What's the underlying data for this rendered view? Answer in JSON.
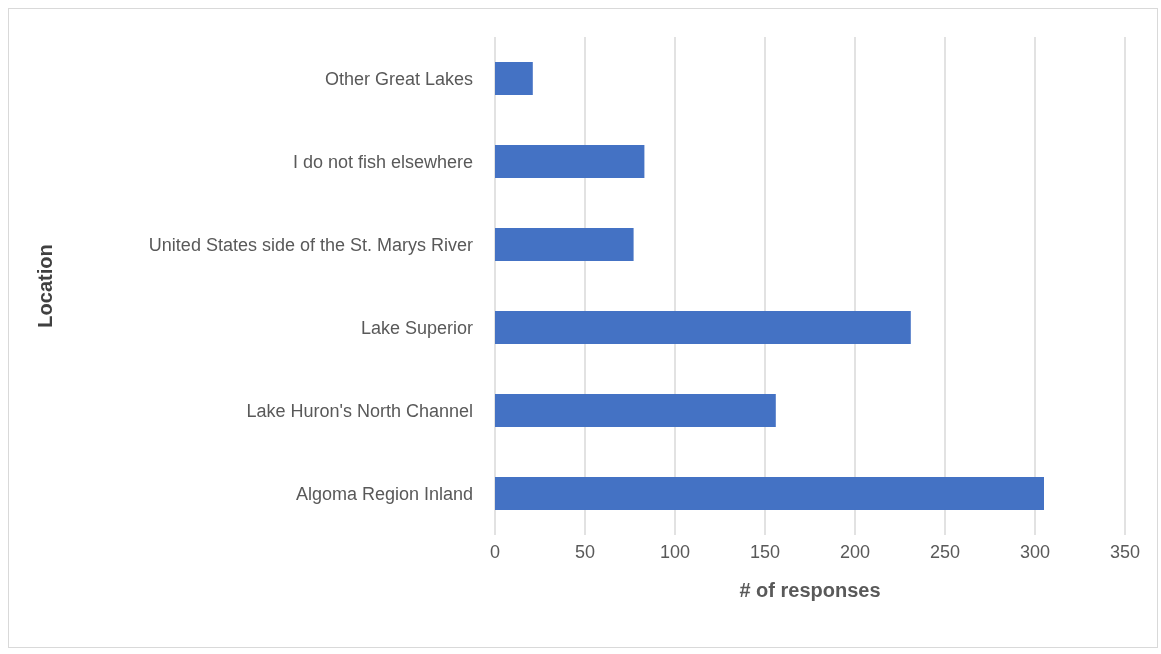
{
  "chart_data": {
    "type": "bar",
    "orientation": "horizontal",
    "xlabel": "# of responses",
    "ylabel": "Location",
    "categories": [
      "Other Great Lakes",
      "I do not fish elsewhere",
      "United States side of the St. Marys River",
      "Lake Superior",
      "Lake Huron's North Channel",
      "Algoma Region Inland"
    ],
    "values": [
      21,
      83,
      77,
      231,
      156,
      305
    ],
    "color": "#4472c4",
    "xlim": [
      0,
      350
    ],
    "xticks": [
      0,
      50,
      100,
      150,
      200,
      250,
      300,
      350
    ],
    "grid": "x"
  }
}
